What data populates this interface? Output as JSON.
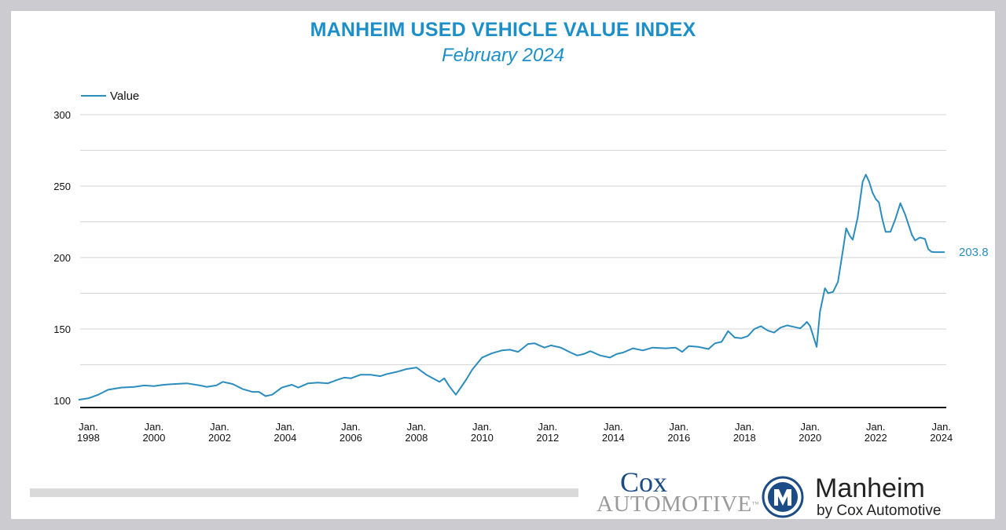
{
  "chart_data": {
    "type": "line",
    "title": "MANHEIM USED VEHICLE VALUE INDEX",
    "subtitle": "February 2024",
    "xlabel": "",
    "ylabel": "",
    "ylim": [
      100,
      300
    ],
    "yticks": [
      100,
      150,
      200,
      250,
      300
    ],
    "grid": true,
    "legend_position": "top-left",
    "line_color": "#2a8dbd",
    "x_tick_labels": [
      {
        "month": "Jan.",
        "year": "1998",
        "x": 1998.0
      },
      {
        "month": "Jan.",
        "year": "2000",
        "x": 2000.0
      },
      {
        "month": "Jan.",
        "year": "2002",
        "x": 2002.0
      },
      {
        "month": "Jan.",
        "year": "2004",
        "x": 2004.0
      },
      {
        "month": "Jan.",
        "year": "2006",
        "x": 2006.0
      },
      {
        "month": "Jan.",
        "year": "2008",
        "x": 2008.0
      },
      {
        "month": "Jan.",
        "year": "2010",
        "x": 2010.0
      },
      {
        "month": "Jan.",
        "year": "2012",
        "x": 2012.0
      },
      {
        "month": "Jan.",
        "year": "2014",
        "x": 2014.0
      },
      {
        "month": "Jan.",
        "year": "2016",
        "x": 2016.0
      },
      {
        "month": "Jan.",
        "year": "2018",
        "x": 2018.0
      },
      {
        "month": "Jan.",
        "year": "2020",
        "x": 2020.0
      },
      {
        "month": "Jan.",
        "year": "2022",
        "x": 2022.0
      },
      {
        "month": "Jan.",
        "year": "2024",
        "x": 2024.0
      }
    ],
    "end_label": "203.8",
    "series": [
      {
        "name": "Value",
        "x": [
          1997.7,
          1998.0,
          1998.3,
          1998.6,
          1999.0,
          1999.4,
          1999.7,
          2000.0,
          2000.3,
          2000.6,
          2001.0,
          2001.4,
          2001.6,
          2001.9,
          2002.1,
          2002.4,
          2002.7,
          2003.0,
          2003.2,
          2003.4,
          2003.6,
          2003.9,
          2004.2,
          2004.4,
          2004.7,
          2005.0,
          2005.3,
          2005.6,
          2005.8,
          2006.0,
          2006.3,
          2006.6,
          2006.9,
          2007.1,
          2007.4,
          2007.7,
          2008.0,
          2008.3,
          2008.5,
          2008.7,
          2008.85,
          2009.0,
          2009.2,
          2009.5,
          2009.7,
          2010.0,
          2010.3,
          2010.6,
          2010.85,
          2011.1,
          2011.4,
          2011.6,
          2011.9,
          2012.1,
          2012.4,
          2012.7,
          2012.9,
          2013.1,
          2013.3,
          2013.6,
          2013.9,
          2014.1,
          2014.3,
          2014.6,
          2014.9,
          2015.2,
          2015.6,
          2015.9,
          2016.1,
          2016.3,
          2016.6,
          2016.9,
          2017.1,
          2017.3,
          2017.5,
          2017.7,
          2017.9,
          2018.1,
          2018.3,
          2018.5,
          2018.7,
          2018.9,
          2019.1,
          2019.3,
          2019.5,
          2019.7,
          2019.8,
          2019.9,
          2020.0,
          2020.2,
          2020.3,
          2020.45,
          2020.55,
          2020.7,
          2020.85,
          2021.0,
          2021.1,
          2021.2,
          2021.3,
          2021.45,
          2021.6,
          2021.7,
          2021.8,
          2021.9,
          2022.0,
          2022.1,
          2022.2,
          2022.3,
          2022.45,
          2022.6,
          2022.75,
          2022.9,
          2023.1,
          2023.2,
          2023.35,
          2023.5,
          2023.6,
          2023.7,
          2023.8,
          2023.9,
          2024.0,
          2024.1
        ],
        "values": [
          100.5,
          101.5,
          104.0,
          107.5,
          109.0,
          109.5,
          110.5,
          110.0,
          111.0,
          111.5,
          112.0,
          110.5,
          109.5,
          110.5,
          113.0,
          111.5,
          108.0,
          106.0,
          106.0,
          103.0,
          104.0,
          109.0,
          111.0,
          109.0,
          112.0,
          112.5,
          112.0,
          114.5,
          116.0,
          115.5,
          118.0,
          118.0,
          117.0,
          118.5,
          120.0,
          122.0,
          123.0,
          118.0,
          115.5,
          113.0,
          115.5,
          110.0,
          104.0,
          114.0,
          121.5,
          130.0,
          133.0,
          135.0,
          135.5,
          134.0,
          139.5,
          140.0,
          137.0,
          138.5,
          137.0,
          133.5,
          131.5,
          132.5,
          134.5,
          131.5,
          130.0,
          132.5,
          133.5,
          136.5,
          135.0,
          137.0,
          136.5,
          137.0,
          134.0,
          138.0,
          137.5,
          136.0,
          140.0,
          141.0,
          148.5,
          144.0,
          143.5,
          145.0,
          150.0,
          152.0,
          149.0,
          147.5,
          151.0,
          152.5,
          151.5,
          150.5,
          152.5,
          155.0,
          152.0,
          137.5,
          162.0,
          178.5,
          175.0,
          176.0,
          183.0,
          205.0,
          220.5,
          215.5,
          212.5,
          228.0,
          253.0,
          258.0,
          253.0,
          245.5,
          241.0,
          238.5,
          227.0,
          218.0,
          218.0,
          227.0,
          238.0,
          230.0,
          216.0,
          212.0,
          214.0,
          213.0,
          206.0,
          204.0,
          203.8,
          203.8,
          203.8,
          203.8
        ]
      }
    ]
  },
  "legend": {
    "label": "Value"
  },
  "logos": {
    "cox_line1": "Cox",
    "cox_line2": "AUTOMOTIVE",
    "cox_tm": "™",
    "manheim_name": "Manheim",
    "manheim_by": "by Cox Automotive"
  }
}
